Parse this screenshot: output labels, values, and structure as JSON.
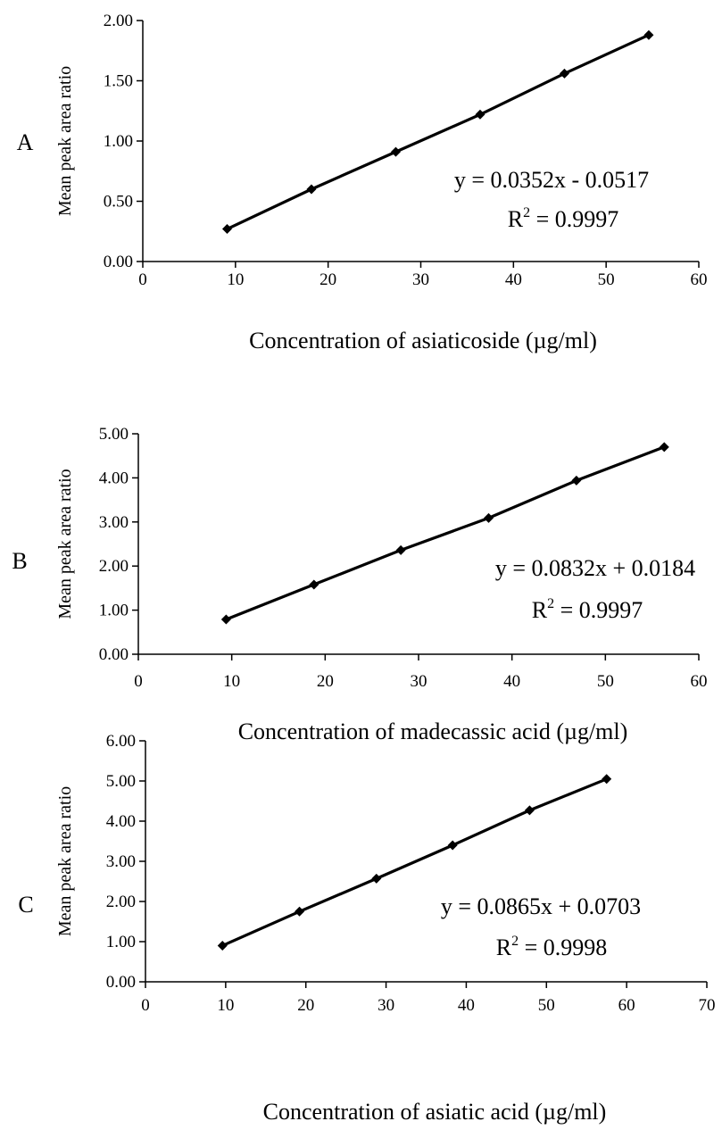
{
  "chart_data": [
    {
      "type": "line",
      "panel_label": "A",
      "xlabel": "Concentration of asiaticoside (µg/ml)",
      "ylabel": "Mean peak area ratio",
      "xlim": [
        0,
        60
      ],
      "ylim": [
        0,
        2
      ],
      "x_ticks": [
        "0",
        "10",
        "20",
        "30",
        "40",
        "50",
        "60"
      ],
      "y_ticks": [
        "0.00",
        "0.50",
        "1.00",
        "1.50",
        "2.00"
      ],
      "x": [
        9.1,
        18.2,
        27.3,
        36.4,
        45.5,
        54.6
      ],
      "series": [
        {
          "values": [
            0.27,
            0.6,
            0.91,
            1.22,
            1.56,
            1.88
          ]
        }
      ],
      "equation": "y = 0.0352x - 0.0517",
      "r2_label": "R",
      "r2_exp": "2",
      "r2_value": " = 0.9997"
    },
    {
      "type": "line",
      "panel_label": "B",
      "xlabel": "Concentration of madecassic acid (µg/ml)",
      "ylabel": "Mean peak area ratio",
      "xlim": [
        0,
        60
      ],
      "ylim": [
        0,
        5
      ],
      "x_ticks": [
        "0",
        "10",
        "20",
        "30",
        "40",
        "50",
        "60"
      ],
      "y_ticks": [
        "0.00",
        "1.00",
        "2.00",
        "3.00",
        "4.00",
        "5.00"
      ],
      "x": [
        9.4,
        18.8,
        28.1,
        37.5,
        46.9,
        56.3
      ],
      "series": [
        {
          "values": [
            0.79,
            1.58,
            2.36,
            3.09,
            3.94,
            4.7
          ]
        }
      ],
      "equation": "y = 0.0832x + 0.0184",
      "r2_label": "R",
      "r2_exp": "2",
      "r2_value": " = 0.9997"
    },
    {
      "type": "line",
      "panel_label": "C",
      "xlabel": "Concentration of asiatic acid (µg/ml)",
      "ylabel": "Mean peak area ratio",
      "xlim": [
        0,
        70
      ],
      "ylim": [
        0,
        6
      ],
      "x_ticks": [
        "0",
        "10",
        "20",
        "30",
        "40",
        "50",
        "60",
        "70"
      ],
      "y_ticks": [
        "0.00",
        "1.00",
        "2.00",
        "3.00",
        "4.00",
        "5.00",
        "6.00"
      ],
      "x": [
        9.6,
        19.2,
        28.8,
        38.3,
        47.9,
        57.5
      ],
      "series": [
        {
          "values": [
            0.9,
            1.75,
            2.57,
            3.4,
            4.27,
            5.05
          ]
        }
      ],
      "equation": "y = 0.0865x + 0.0703",
      "r2_label": "R",
      "r2_exp": "2",
      "r2_value": " = 0.9998"
    }
  ]
}
